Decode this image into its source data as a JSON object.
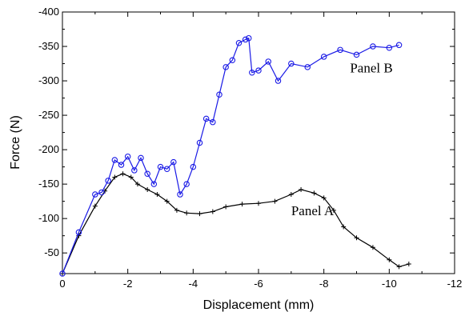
{
  "chart_data": {
    "type": "line",
    "title": "",
    "xlabel": "Displacement (mm)",
    "ylabel": "Force (N)",
    "xlim": [
      0,
      -12
    ],
    "ylim": [
      -20,
      -400
    ],
    "x_ticks": [
      0,
      -2,
      -4,
      -6,
      -8,
      -10,
      -12
    ],
    "y_ticks": [
      -50,
      -100,
      -150,
      -200,
      -250,
      -300,
      -350,
      -400
    ],
    "x_tick_labels": [
      "0",
      "-2",
      "-4",
      "-6",
      "-8",
      "-10",
      "-12"
    ],
    "y_tick_labels": [
      "-50",
      "-100",
      "-150",
      "-200",
      "-250",
      "-300",
      "-350",
      "-400"
    ],
    "grid": false,
    "annotations": [
      {
        "text": "Panel B",
        "x": -8.8,
        "y": -312
      },
      {
        "text": "Panel A",
        "x": -7.0,
        "y": -105
      }
    ],
    "series": [
      {
        "name": "Panel A",
        "color": "#000000",
        "marker": "plus",
        "x": [
          0,
          -0.5,
          -1.0,
          -1.3,
          -1.6,
          -1.85,
          -2.1,
          -2.3,
          -2.6,
          -2.9,
          -3.2,
          -3.5,
          -3.8,
          -4.2,
          -4.6,
          -5.0,
          -5.5,
          -6.0,
          -6.5,
          -7.0,
          -7.3,
          -7.7,
          -8.0,
          -8.3,
          -8.6,
          -9.0,
          -9.5,
          -10.0,
          -10.3,
          -10.6
        ],
        "y": [
          -20,
          -75,
          -118,
          -140,
          -160,
          -165,
          -160,
          -150,
          -142,
          -135,
          -125,
          -112,
          -108,
          -107,
          -110,
          -117,
          -121,
          -122,
          -125,
          -135,
          -142,
          -137,
          -130,
          -112,
          -88,
          -72,
          -58,
          -40,
          -30,
          -34
        ]
      },
      {
        "name": "Panel B",
        "color": "#1a1ae6",
        "marker": "circle",
        "x": [
          0,
          -0.5,
          -1.0,
          -1.2,
          -1.4,
          -1.6,
          -1.8,
          -2.0,
          -2.2,
          -2.4,
          -2.6,
          -2.8,
          -3.0,
          -3.2,
          -3.4,
          -3.6,
          -3.8,
          -4.0,
          -4.2,
          -4.4,
          -4.6,
          -4.8,
          -5.0,
          -5.2,
          -5.4,
          -5.6,
          -5.7,
          -5.8,
          -6.0,
          -6.3,
          -6.6,
          -7.0,
          -7.5,
          -8.0,
          -8.5,
          -9.0,
          -9.5,
          -10.0,
          -10.3
        ],
        "y": [
          -20,
          -80,
          -135,
          -138,
          -155,
          -185,
          -178,
          -190,
          -170,
          -188,
          -165,
          -150,
          -175,
          -172,
          -182,
          -135,
          -150,
          -175,
          -210,
          -245,
          -240,
          -280,
          -320,
          -330,
          -355,
          -360,
          -362,
          -312,
          -315,
          -328,
          -300,
          -325,
          -320,
          -335,
          -345,
          -338,
          -350,
          -348,
          -352
        ]
      }
    ]
  }
}
